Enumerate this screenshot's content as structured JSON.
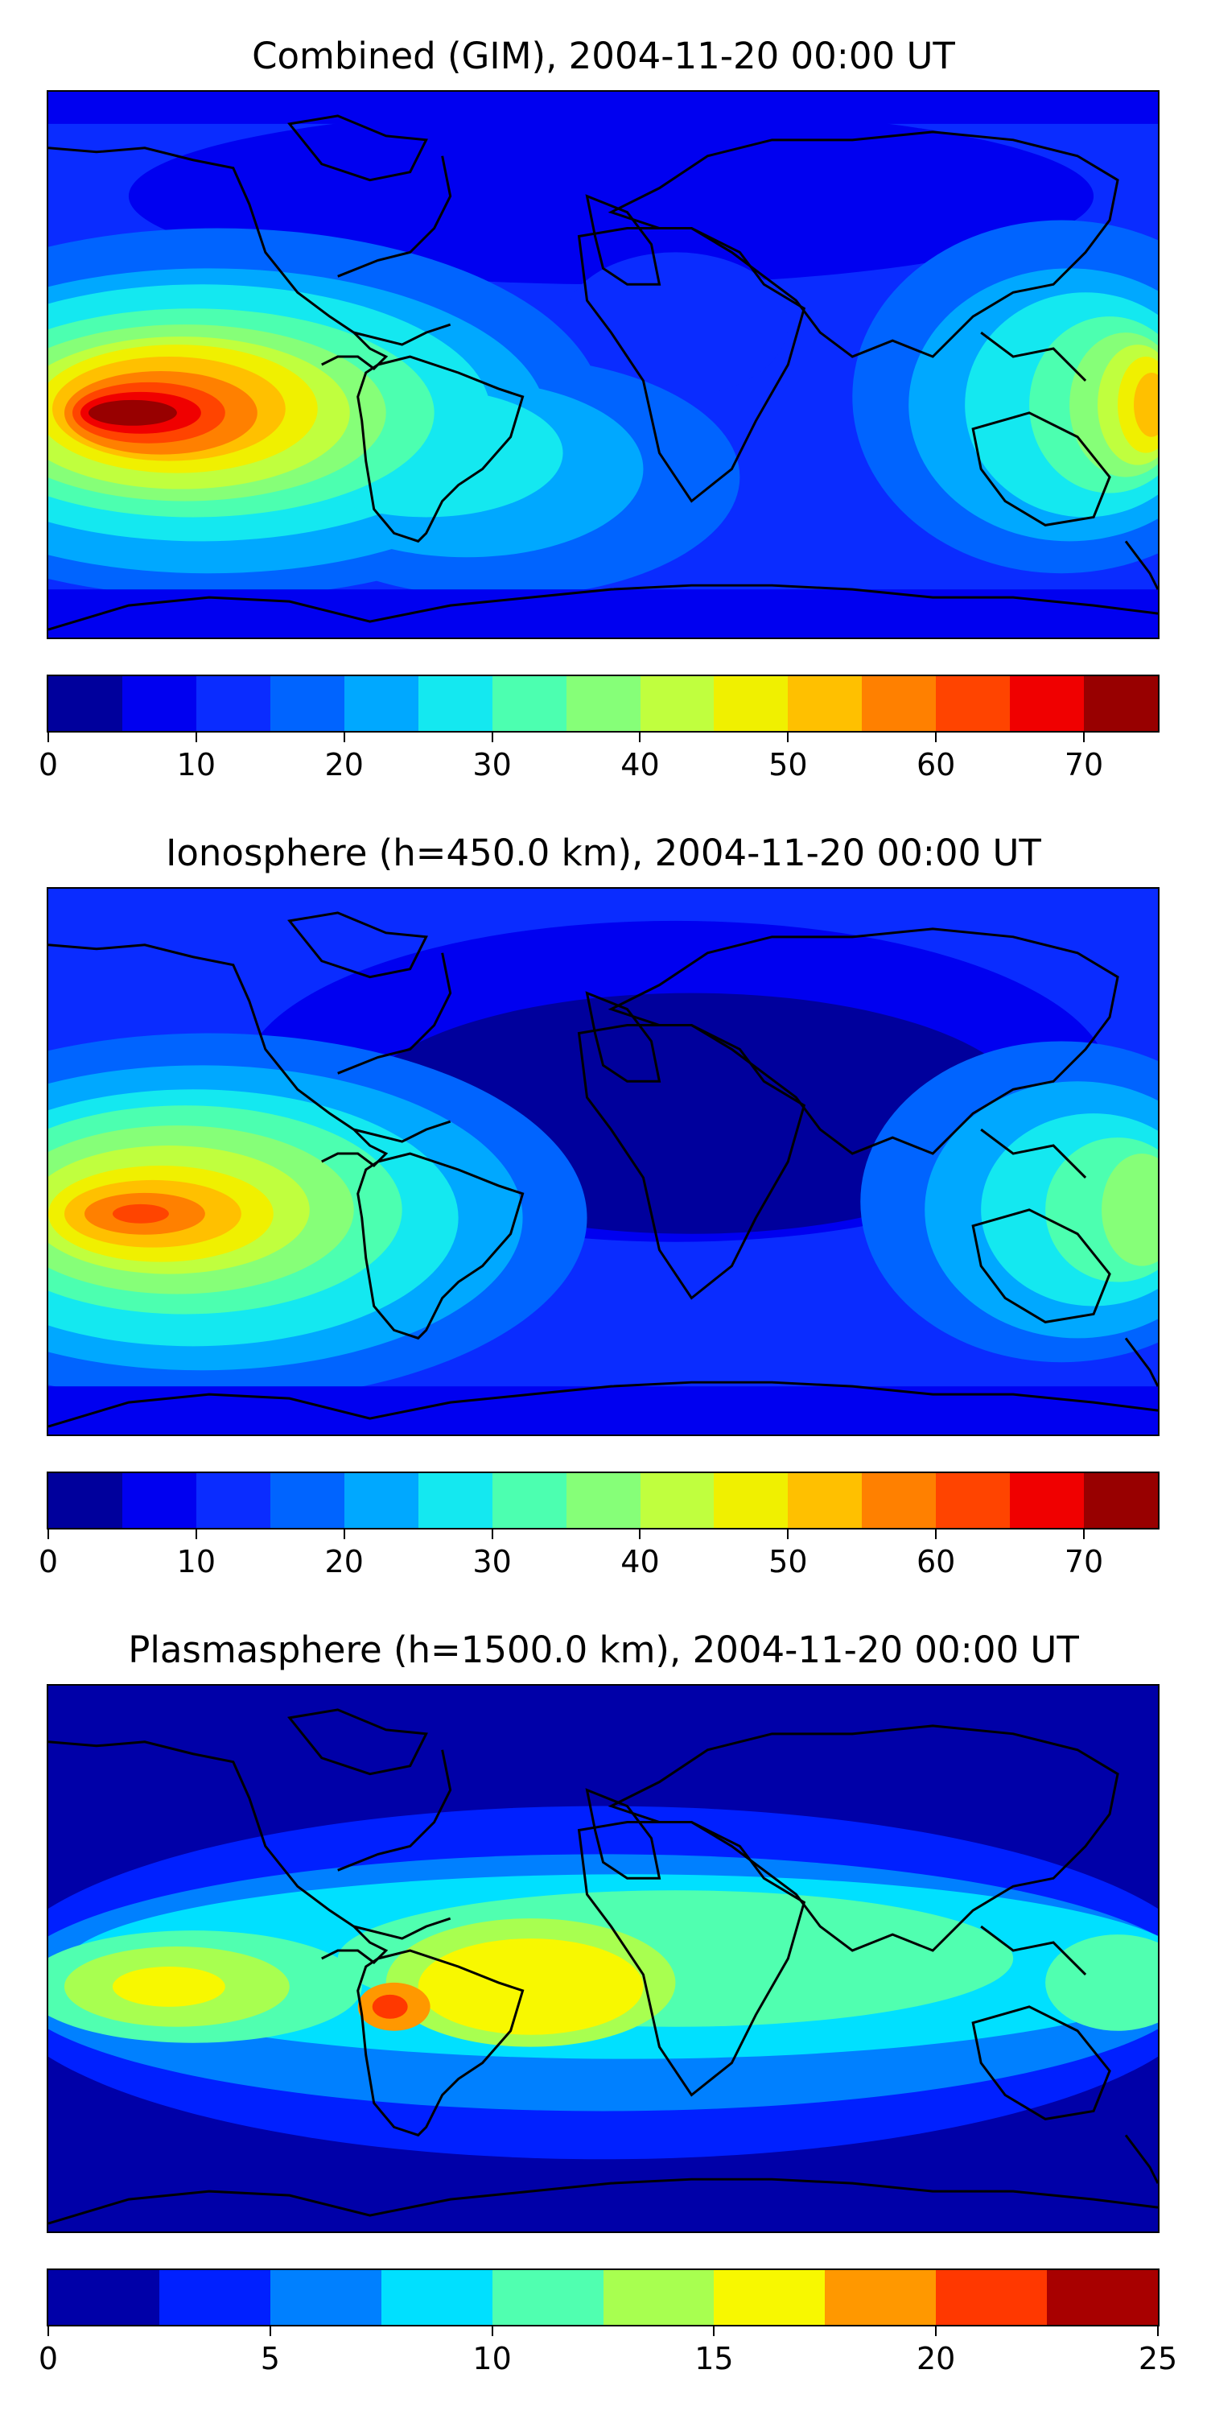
{
  "panels": [
    {
      "title": "Combined (GIM), 2004-11-20 00:00 UT",
      "colorbar": {
        "min": 0,
        "max": 75,
        "ticks": [
          "0",
          "10",
          "20",
          "30",
          "40",
          "50",
          "60",
          "70"
        ],
        "tick_values": [
          0,
          10,
          20,
          30,
          40,
          50,
          60,
          70
        ],
        "levels": [
          0,
          5,
          10,
          15,
          20,
          25,
          30,
          35,
          40,
          45,
          50,
          55,
          60,
          65,
          70,
          75
        ],
        "colors": [
          "#00009c",
          "#0000f0",
          "#0a2cff",
          "#0064ff",
          "#00a8ff",
          "#14e8f0",
          "#4cffb0",
          "#86ff78",
          "#c0ff3e",
          "#f0f000",
          "#ffc000",
          "#ff8000",
          "#ff4400",
          "#f00000",
          "#980000"
        ]
      }
    },
    {
      "title": "Ionosphere  (h=450.0 km), 2004-11-20 00:00 UT",
      "colorbar": {
        "min": 0,
        "max": 75,
        "ticks": [
          "0",
          "10",
          "20",
          "30",
          "40",
          "50",
          "60",
          "70"
        ],
        "tick_values": [
          0,
          10,
          20,
          30,
          40,
          50,
          60,
          70
        ],
        "levels": [
          0,
          5,
          10,
          15,
          20,
          25,
          30,
          35,
          40,
          45,
          50,
          55,
          60,
          65,
          70,
          75
        ],
        "colors": [
          "#00009c",
          "#0000f0",
          "#0a2cff",
          "#0064ff",
          "#00a8ff",
          "#14e8f0",
          "#4cffb0",
          "#86ff78",
          "#c0ff3e",
          "#f0f000",
          "#ffc000",
          "#ff8000",
          "#ff4400",
          "#f00000",
          "#980000"
        ]
      }
    },
    {
      "title": "Plasmasphere (h=1500.0 km), 2004-11-20 00:00 UT",
      "colorbar": {
        "min": 0,
        "max": 25,
        "ticks": [
          "0",
          "5",
          "10",
          "15",
          "20",
          "25"
        ],
        "tick_values": [
          0,
          5,
          10,
          15,
          20,
          25
        ],
        "levels": [
          0,
          2.5,
          5,
          7.5,
          10,
          12.5,
          15,
          17.5,
          20,
          22.5,
          25
        ],
        "colors": [
          "#0000a8",
          "#0020ff",
          "#0080ff",
          "#00e0ff",
          "#50ffb0",
          "#a8ff50",
          "#f8f800",
          "#ff9800",
          "#ff3800",
          "#a80000"
        ]
      }
    }
  ]
}
